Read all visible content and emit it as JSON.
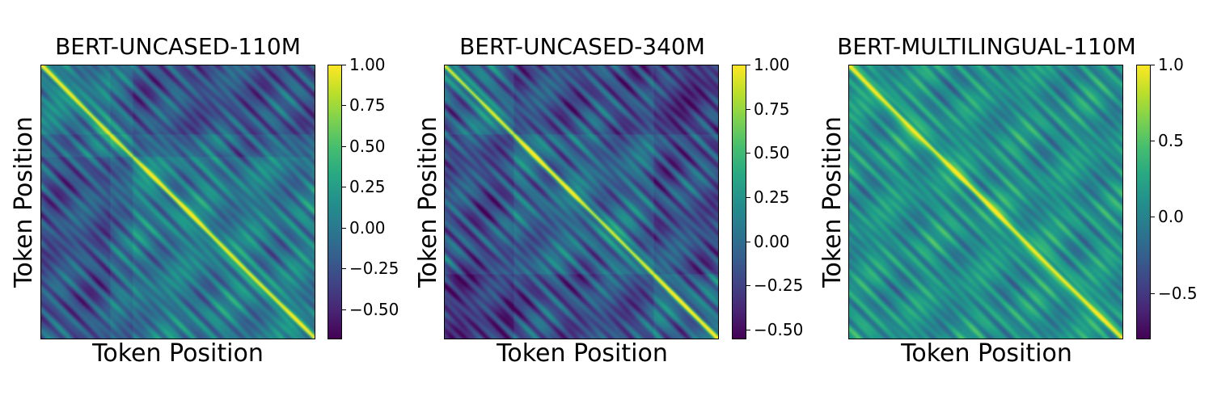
{
  "chart_data": [
    {
      "type": "heatmap",
      "title": "BERT-UNCASED-110M",
      "xlabel": "Token Position",
      "ylabel": "Token Position",
      "colormap": "viridis",
      "vmin": -0.68,
      "vmax": 1.0,
      "colorbar_ticks": [
        1.0,
        0.75,
        0.5,
        0.25,
        0.0,
        -0.25,
        -0.5
      ],
      "colorbar_tick_labels": [
        "1.00",
        "0.75",
        "0.50",
        "0.25",
        "0.00",
        "−0.25",
        "−0.50"
      ],
      "block_boundaries": [
        0.25,
        0.33
      ],
      "block_level": 0.0
    },
    {
      "type": "heatmap",
      "title": "BERT-UNCASED-340M",
      "xlabel": "Token Position",
      "ylabel": "Token Position",
      "colormap": "viridis",
      "vmin": -0.55,
      "vmax": 1.0,
      "colorbar_ticks": [
        1.0,
        0.75,
        0.5,
        0.25,
        0.0,
        -0.25,
        -0.5
      ],
      "colorbar_tick_labels": [
        "1.00",
        "0.75",
        "0.50",
        "0.25",
        "0.00",
        "−0.25",
        "−0.50"
      ],
      "block_boundaries": [
        0.25,
        0.76
      ],
      "block_level": -0.05
    },
    {
      "type": "heatmap",
      "title": "BERT-MULTILINGUAL-110M",
      "xlabel": "Token Position",
      "ylabel": "Token Position",
      "colormap": "viridis",
      "vmin": -0.8,
      "vmax": 1.0,
      "colorbar_ticks": [
        1.0,
        0.5,
        0.0,
        -0.5
      ],
      "colorbar_tick_labels": [
        "1.0",
        "0.5",
        "0.0",
        "−0.5"
      ],
      "block_boundaries": [],
      "block_level": 0.1
    }
  ]
}
